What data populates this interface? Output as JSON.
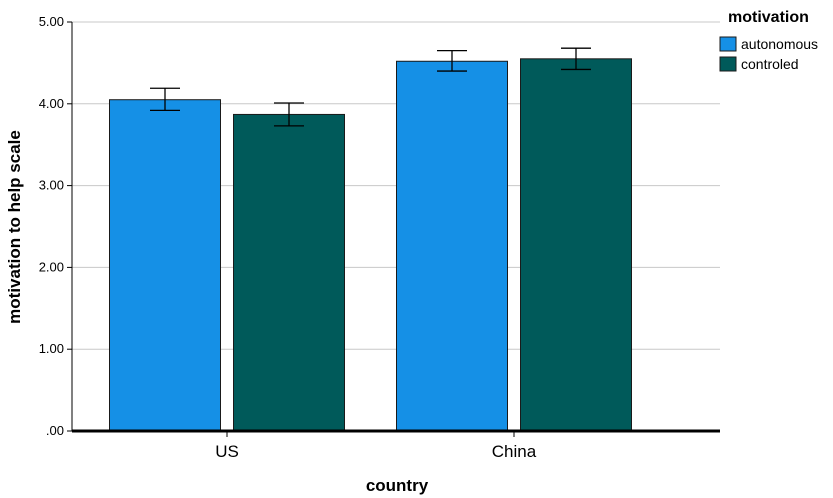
{
  "chart_data": {
    "type": "bar",
    "xlabel": "country",
    "ylabel": "motivation to help scale",
    "categories": [
      "US",
      "China"
    ],
    "ylim": [
      0,
      5
    ],
    "yticks": [
      0,
      1,
      2,
      3,
      4,
      5
    ],
    "ytick_labels": [
      ".00",
      "1.00",
      "2.00",
      "3.00",
      "4.00",
      "5.00"
    ],
    "grid": true,
    "legend": {
      "title": "motivation",
      "placement": "top-right"
    },
    "series": [
      {
        "name": "autonomous",
        "color": "#1590e6",
        "values": [
          4.05,
          4.52
        ],
        "error_low": [
          3.92,
          4.4
        ],
        "error_high": [
          4.19,
          4.65
        ]
      },
      {
        "name": "controled",
        "color": "#005a5a",
        "values": [
          3.87,
          4.55
        ],
        "error_low": [
          3.73,
          4.42
        ],
        "error_high": [
          4.01,
          4.68
        ]
      }
    ]
  }
}
